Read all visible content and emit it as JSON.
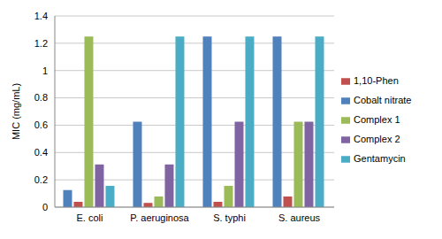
{
  "chart_data": {
    "type": "bar",
    "y_label": "MIC (mg/mL)",
    "categories": [
      "E. coli",
      "P. aeruginosa",
      "S. typhi",
      "S. aureus"
    ],
    "series": [
      {
        "name": "Cobalt nitrate",
        "color": "#4f81bd",
        "values": [
          0.125,
          0.625,
          1.25,
          1.25
        ]
      },
      {
        "name": "1,10-Phen",
        "color": "#c0504d",
        "values": [
          0.039,
          0.031,
          0.039,
          0.078
        ]
      },
      {
        "name": "Complex 1",
        "color": "#9bbb59",
        "values": [
          1.25,
          0.078,
          0.156,
          0.625
        ]
      },
      {
        "name": "Complex 2",
        "color": "#8064a2",
        "values": [
          0.3125,
          0.3125,
          0.625,
          0.625
        ]
      },
      {
        "name": "Gentamycin",
        "color": "#4bacc6",
        "values": [
          0.156,
          1.25,
          1.25,
          1.25
        ]
      }
    ],
    "ylim": [
      0,
      1.4
    ],
    "yticks": [
      0,
      0.2,
      0.4,
      0.6,
      0.8,
      1,
      1.2,
      1.4
    ],
    "grid": true,
    "legend": "right"
  }
}
